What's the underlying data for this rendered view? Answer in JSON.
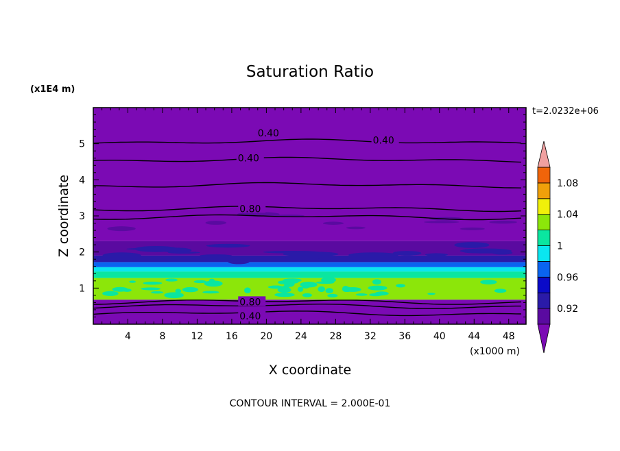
{
  "chart_data": {
    "type": "heatmap",
    "title": "Saturation Ratio",
    "xlabel": "X coordinate",
    "ylabel": "Z coordinate",
    "x_unit_label": "(x1000 m)",
    "y_unit_label": "(x1E4 m)",
    "xlim": [
      0,
      50
    ],
    "ylim": [
      0,
      6
    ],
    "x_ticks": [
      4,
      8,
      12,
      16,
      20,
      24,
      28,
      32,
      36,
      40,
      44,
      48
    ],
    "y_ticks": [
      1,
      2,
      3,
      4,
      5
    ],
    "time_label": "t=2.0232e+06",
    "footer": "CONTOUR INTERVAL = 2.000E-01",
    "colorbar": {
      "levels": [
        0.9,
        0.92,
        0.94,
        0.96,
        0.98,
        1.0,
        1.02,
        1.04,
        1.06,
        1.08,
        1.1
      ],
      "labeled_ticks": [
        {
          "value": 0.92,
          "label": "0.92"
        },
        {
          "value": 0.96,
          "label": "0.96"
        },
        {
          "value": 1.0,
          "label": "1"
        },
        {
          "value": 1.04,
          "label": "1.04"
        },
        {
          "value": 1.08,
          "label": "1.08"
        }
      ],
      "colors": [
        "#5a0aa0",
        "#2a1aa8",
        "#0a0ac8",
        "#0a64f0",
        "#0ae6f0",
        "#0ae6a0",
        "#8ce60a",
        "#f0f00a",
        "#f0a00a",
        "#f0640a",
        "#f01e0a"
      ],
      "under_color": "#7b0ab4",
      "over_color": "#f0a0a0"
    },
    "bands": [
      {
        "z_low": 0.0,
        "z_high": 0.68,
        "color": "#7b0ab4"
      },
      {
        "z_low": 0.68,
        "z_high": 1.28,
        "color": "#8ce60a"
      },
      {
        "z_low": 1.28,
        "z_high": 1.46,
        "color": "#0ae6a0"
      },
      {
        "z_low": 1.46,
        "z_high": 1.58,
        "color": "#0ae6f0"
      },
      {
        "z_low": 1.58,
        "z_high": 1.72,
        "color": "#0a64f0"
      },
      {
        "z_low": 1.72,
        "z_high": 1.9,
        "color": "#2a1aa8"
      },
      {
        "z_low": 1.9,
        "z_high": 2.3,
        "color": "#5a0aa0"
      },
      {
        "z_low": 2.3,
        "z_high": 6.0,
        "color": "#7b0ab4"
      }
    ],
    "contour_lines": [
      {
        "level": "0.40",
        "z": 5.05
      },
      {
        "level": "0.40",
        "z": 4.55
      },
      {
        "level": "",
        "z": 3.85
      },
      {
        "level": "0.80",
        "z": 3.2
      },
      {
        "level": "",
        "z": 2.97
      },
      {
        "level": "0.80",
        "z": 0.62
      },
      {
        "level": "",
        "z": 0.5
      },
      {
        "level": "0.40",
        "z": 0.3
      }
    ],
    "contour_labels": [
      {
        "text": "0.40",
        "x": 19.0,
        "z": 5.3
      },
      {
        "text": "0.40",
        "x": 32.3,
        "z": 5.1
      },
      {
        "text": "0.40",
        "x": 16.7,
        "z": 4.6
      },
      {
        "text": "0.80",
        "x": 16.9,
        "z": 3.2
      },
      {
        "text": "0.80",
        "x": 16.9,
        "z": 0.62
      },
      {
        "text": "0.40",
        "x": 16.9,
        "z": 0.23
      }
    ]
  }
}
